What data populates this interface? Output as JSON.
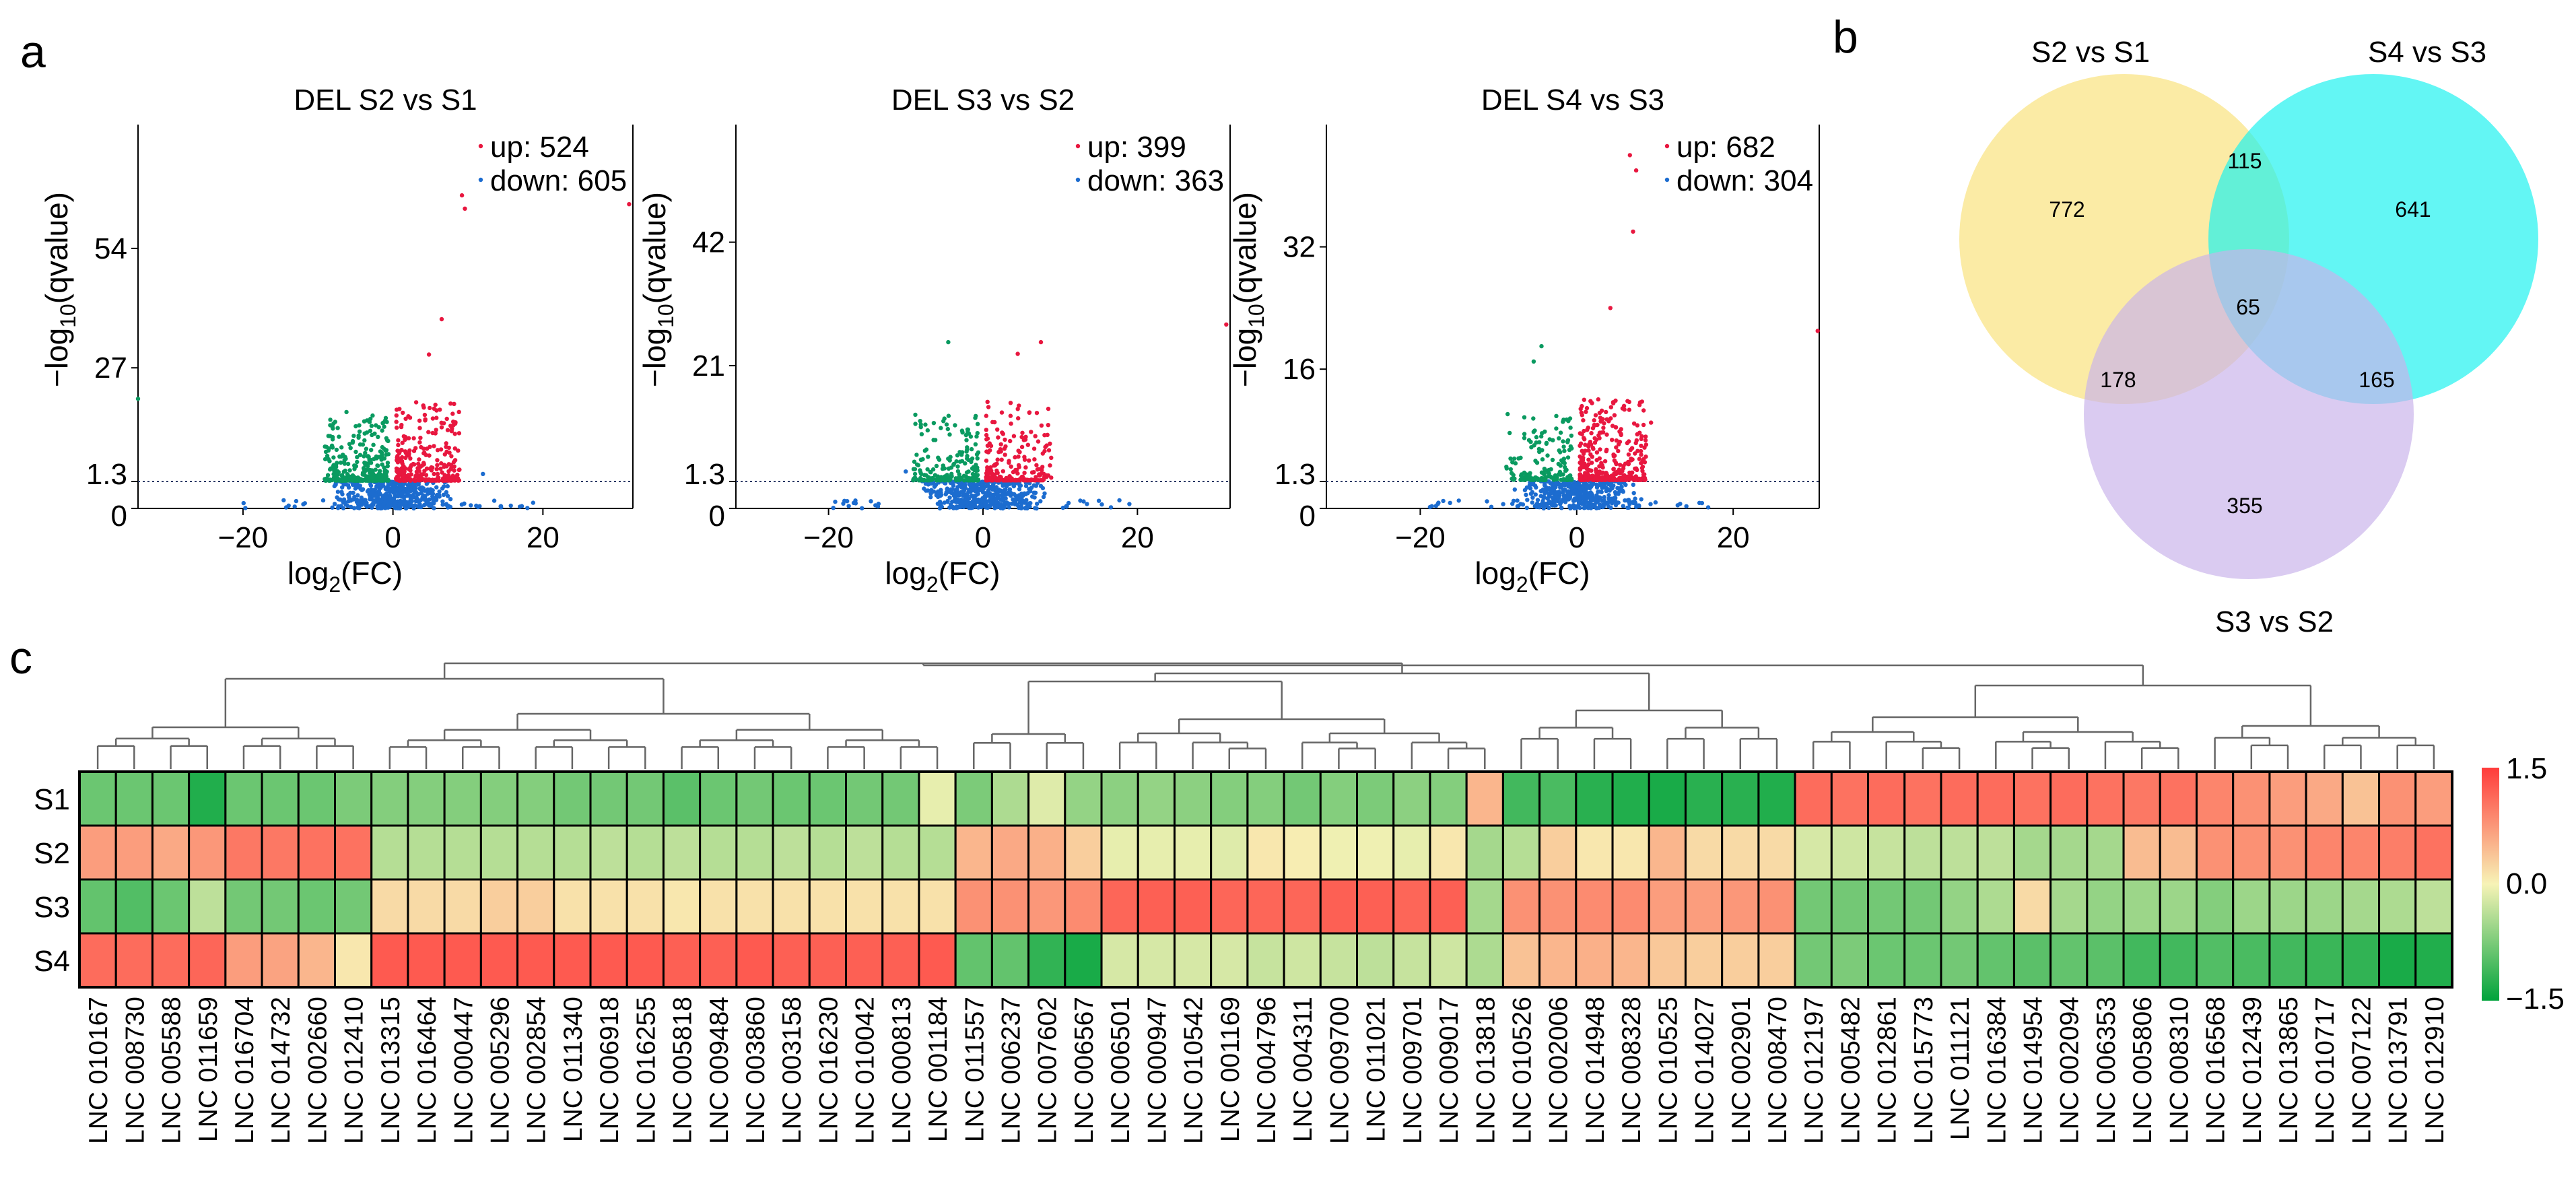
{
  "panel_labels": {
    "a": "a",
    "b": "b",
    "c": "c"
  },
  "chart_data": [
    {
      "type": "scatter",
      "kind": "volcano",
      "title": "DEL S2 vs S1",
      "xlabel_base": "log",
      "xlabel_sub": "2",
      "xlabel_rest": "(FC)",
      "ylabel_prefix": "−log",
      "ylabel_sub": "10",
      "ylabel_rest": "(qvalue)",
      "xlim": [
        -34,
        32
      ],
      "ylim": [
        0,
        82
      ],
      "xticks": [
        -20,
        0,
        20
      ],
      "xtick_labels": [
        "−20",
        "0",
        "20"
      ],
      "yticks": [
        0,
        1.3,
        27,
        54
      ],
      "ytick_labels": [
        "0",
        "1.3",
        "27",
        "54"
      ],
      "threshold": 1.3,
      "legend": {
        "up": "up: 524",
        "down": "down: 605"
      },
      "colors": {
        "up": "#e8173f",
        "down": "#0a9a60",
        "ns": "#1c6ccf"
      },
      "seed": 11,
      "counts": {
        "up": 524,
        "down": 605
      },
      "highlights": [
        [
          9.2,
          66
        ],
        [
          9.6,
          63
        ],
        [
          6.5,
          38
        ],
        [
          4.8,
          30
        ],
        [
          -6.2,
          17
        ],
        [
          -4.5,
          14
        ],
        [
          12.0,
          3
        ],
        [
          31.5,
          64
        ],
        [
          -34,
          20
        ]
      ]
    },
    {
      "type": "scatter",
      "kind": "volcano",
      "title": "DEL S3 vs S2",
      "xlabel_base": "log",
      "xlabel_sub": "2",
      "xlabel_rest": "(FC)",
      "ylabel_prefix": "−log",
      "ylabel_sub": "10",
      "ylabel_rest": "(qvalue)",
      "xlim": [
        -32,
        32
      ],
      "ylim": [
        0,
        62
      ],
      "xticks": [
        -20,
        0,
        20
      ],
      "xtick_labels": [
        "−20",
        "0",
        "20"
      ],
      "yticks": [
        0,
        1.3,
        21,
        42
      ],
      "ytick_labels": [
        "0",
        "1.3",
        "21",
        "42"
      ],
      "threshold": 1.3,
      "legend": {
        "up": "up: 399",
        "down": "down: 363"
      },
      "colors": {
        "up": "#e8173f",
        "down": "#0a9a60",
        "ns": "#1c6ccf"
      },
      "seed": 23,
      "counts": {
        "up": 399,
        "down": 363
      },
      "highlights": [
        [
          -4.5,
          25
        ],
        [
          7.5,
          25
        ],
        [
          4.5,
          23
        ],
        [
          6.0,
          13
        ],
        [
          -5.0,
          12
        ],
        [
          -10.0,
          3
        ],
        [
          31.5,
          28
        ]
      ]
    },
    {
      "type": "scatter",
      "kind": "volcano",
      "title": "DEL S4 vs S3",
      "xlabel_base": "log",
      "xlabel_sub": "2",
      "xlabel_rest": "(FC)",
      "ylabel_prefix": "−log",
      "ylabel_sub": "10",
      "ylabel_rest": "(qvalue)",
      "xlim": [
        -32,
        31
      ],
      "ylim": [
        0,
        48
      ],
      "xticks": [
        -20,
        0,
        20
      ],
      "xtick_labels": [
        "−20",
        "0",
        "20"
      ],
      "yticks": [
        0,
        1.3,
        16,
        32
      ],
      "ytick_labels": [
        "0",
        "1.3",
        "16",
        "32"
      ],
      "threshold": 1.3,
      "legend": {
        "up": "up: 682",
        "down": "down: 304"
      },
      "colors": {
        "up": "#e8173f",
        "down": "#0a9a60",
        "ns": "#1c6ccf"
      },
      "seed": 37,
      "counts": {
        "up": 682,
        "down": 304
      },
      "highlights": [
        [
          6.8,
          44
        ],
        [
          7.6,
          42
        ],
        [
          7.2,
          34
        ],
        [
          4.3,
          24
        ],
        [
          -4.5,
          19
        ],
        [
          -5.5,
          17
        ],
        [
          9.5,
          9
        ],
        [
          30.8,
          21
        ]
      ]
    },
    {
      "type": "venn",
      "sets": [
        "S2 vs S1",
        "S4 vs S3",
        "S3 vs S2"
      ],
      "regions": {
        "A_only": 772,
        "AB": 115,
        "B_only": 641,
        "ABC": 65,
        "AC": 178,
        "BC": 165,
        "C_only": 355
      },
      "colors": [
        "#f9e27a",
        "#19f2ef",
        "#c9b3ea"
      ]
    },
    {
      "type": "heatmap",
      "rows": [
        "S1",
        "S2",
        "S3",
        "S4"
      ],
      "columns": [
        "LNC 010167",
        "LNC 008730",
        "LNC 005588",
        "LNC 011659",
        "LNC 016704",
        "LNC 014732",
        "LNC 002660",
        "LNC 012410",
        "LNC 013315",
        "LNC 016464",
        "LNC 000447",
        "LNC 005296",
        "LNC 002854",
        "LNC 011340",
        "LNC 006918",
        "LNC 016255",
        "LNC 005818",
        "LNC 009484",
        "LNC 003860",
        "LNC 003158",
        "LNC 016230",
        "LNC 010042",
        "LNC 000813",
        "LNC 001184",
        "LNC 011557",
        "LNC 006237",
        "LNC 007602",
        "LNC 006567",
        "LNC 006501",
        "LNC 000947",
        "LNC 010542",
        "LNC 001169",
        "LNC 004796",
        "LNC 004311",
        "LNC 009700",
        "LNC 011021",
        "LNC 009701",
        "LNC 009017",
        "LNC 013818",
        "LNC 010526",
        "LNC 002006",
        "LNC 014948",
        "LNC 008328",
        "LNC 010525",
        "LNC 014027",
        "LNC 002901",
        "LNC 008470",
        "LNC 012197",
        "LNC 005482",
        "LNC 012861",
        "LNC 015773",
        "LNC 011121",
        "LNC 016384",
        "LNC 014954",
        "LNC 002094",
        "LNC 006353",
        "LNC 005806",
        "LNC 008310",
        "LNC 016568",
        "LNC 012439",
        "LNC 013865",
        "LNC 010717",
        "LNC 007122",
        "LNC 013791",
        "LNC 012910"
      ],
      "values": [
        [
          -0.85,
          -0.85,
          -0.85,
          -1.3,
          -0.85,
          -0.85,
          -0.85,
          -0.75,
          -0.7,
          -0.7,
          -0.7,
          -0.7,
          -0.7,
          -0.8,
          -0.8,
          -0.8,
          -0.95,
          -0.85,
          -0.8,
          -0.85,
          -0.85,
          -0.8,
          -0.8,
          -0.1,
          -0.75,
          -0.45,
          -0.15,
          -0.6,
          -0.65,
          -0.6,
          -0.65,
          -0.7,
          -0.7,
          -0.8,
          -0.7,
          -0.75,
          -0.65,
          -0.7,
          0.5,
          -1.1,
          -1.05,
          -1.25,
          -1.3,
          -1.35,
          -1.25,
          -1.25,
          -1.3,
          1.1,
          1.05,
          1.1,
          1.05,
          1.1,
          1.1,
          1.05,
          1.1,
          1.05,
          1.0,
          1.05,
          0.9,
          0.8,
          0.7,
          0.6,
          0.4,
          0.8,
          0.7
        ],
        [
          0.7,
          0.7,
          0.6,
          0.75,
          1.0,
          1.0,
          1.05,
          1.05,
          -0.4,
          -0.4,
          -0.4,
          -0.4,
          -0.4,
          -0.4,
          -0.35,
          -0.4,
          -0.35,
          -0.4,
          -0.4,
          -0.35,
          -0.4,
          -0.35,
          -0.4,
          -0.4,
          0.5,
          0.6,
          0.55,
          0.3,
          -0.1,
          -0.1,
          -0.1,
          -0.15,
          0.1,
          0.05,
          -0.05,
          -0.05,
          -0.1,
          0.1,
          -0.5,
          -0.4,
          0.3,
          0.1,
          0.1,
          0.5,
          0.2,
          0.2,
          0.2,
          -0.2,
          -0.25,
          -0.3,
          -0.35,
          -0.35,
          -0.35,
          -0.5,
          -0.5,
          -0.5,
          0.45,
          0.45,
          0.8,
          0.8,
          0.8,
          0.9,
          0.9,
          0.95,
          1.05
        ],
        [
          -0.9,
          -1.0,
          -0.85,
          -0.35,
          -0.8,
          -0.8,
          -0.85,
          -0.8,
          0.2,
          0.2,
          0.2,
          0.3,
          0.3,
          0.15,
          0.15,
          0.15,
          0.1,
          0.15,
          0.15,
          0.15,
          0.15,
          0.15,
          0.15,
          0.15,
          0.8,
          0.8,
          0.75,
          0.85,
          1.15,
          1.2,
          1.2,
          1.15,
          1.15,
          1.15,
          1.2,
          1.2,
          1.15,
          1.2,
          -0.5,
          0.8,
          0.8,
          0.85,
          0.85,
          0.7,
          0.7,
          0.75,
          0.8,
          -0.8,
          -0.8,
          -0.8,
          -0.8,
          -0.6,
          -0.45,
          0.2,
          -0.5,
          -0.6,
          -0.55,
          -0.55,
          -0.7,
          -0.55,
          -0.55,
          -0.55,
          -0.5,
          -0.45,
          -0.35
        ],
        [
          1.1,
          1.1,
          1.1,
          1.15,
          0.7,
          0.65,
          0.5,
          0.1,
          1.25,
          1.25,
          1.25,
          1.25,
          1.25,
          1.25,
          1.25,
          1.25,
          1.2,
          1.2,
          1.25,
          1.2,
          1.2,
          1.2,
          1.2,
          1.25,
          -0.9,
          -0.9,
          -1.2,
          -1.35,
          -0.2,
          -0.2,
          -0.2,
          -0.2,
          -0.3,
          -0.25,
          -0.3,
          -0.35,
          -0.3,
          -0.25,
          -0.45,
          0.4,
          0.5,
          0.55,
          0.5,
          0.35,
          0.3,
          0.3,
          0.3,
          -0.8,
          -0.75,
          -0.85,
          -0.85,
          -0.8,
          -0.9,
          -0.95,
          -0.9,
          -0.95,
          -1.1,
          -1.1,
          -1.0,
          -1.05,
          -1.1,
          -1.15,
          -1.2,
          -1.35,
          -1.3
        ]
      ],
      "colorbar": {
        "max_label": "1.5",
        "mid_label": "0.0",
        "min_label": "−1.5",
        "range": [
          -1.5,
          1.5
        ]
      },
      "col_groups": [
        [
          0,
          8
        ],
        [
          8,
          24
        ],
        [
          24,
          28
        ],
        [
          28,
          39
        ],
        [
          39,
          47
        ],
        [
          47,
          58
        ],
        [
          58,
          65
        ]
      ],
      "colors": {
        "low": "#00a33c",
        "mid": "#f7f3b6",
        "high": "#ff3b3b"
      }
    }
  ]
}
